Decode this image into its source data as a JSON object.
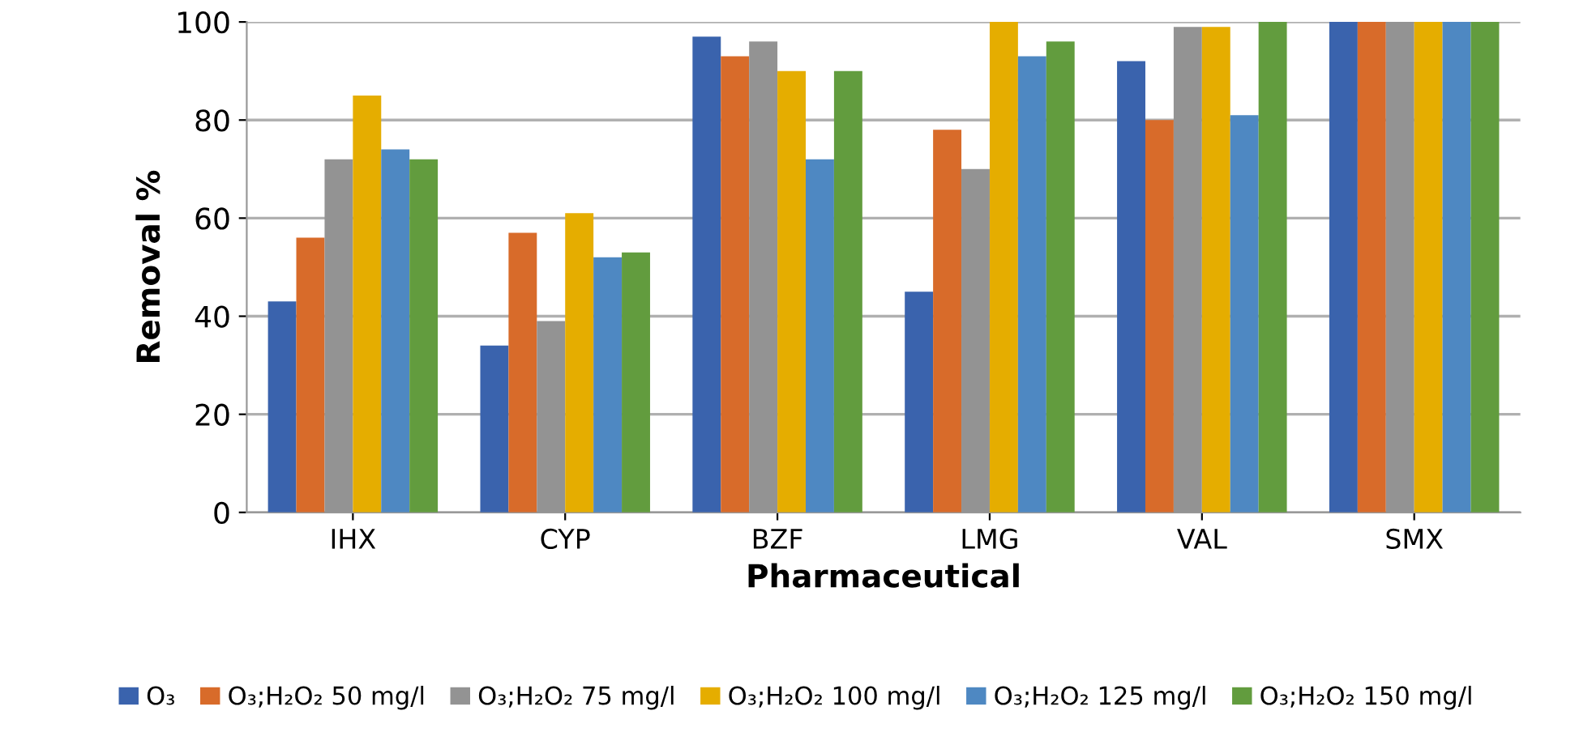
{
  "chart_data": {
    "type": "bar",
    "xlabel": "Pharmaceutical",
    "ylabel": "Removal %",
    "categories": [
      "IHX",
      "CYP",
      "BZF",
      "LMG",
      "VAL",
      "SMX"
    ],
    "series": [
      {
        "name": "O₃",
        "color": "#3a63ad",
        "values": [
          43,
          34,
          97,
          45,
          92,
          100
        ]
      },
      {
        "name": "O₃;H₂O₂ 50 mg/l",
        "color": "#d86b2a",
        "values": [
          56,
          57,
          93,
          78,
          80,
          100
        ]
      },
      {
        "name": "O₃;H₂O₂ 75 mg/l",
        "color": "#939393",
        "values": [
          72,
          39,
          96,
          70,
          99,
          100
        ]
      },
      {
        "name": "O₃;H₂O₂ 100 mg/l",
        "color": "#e5ad00",
        "values": [
          85,
          61,
          90,
          100,
          99,
          100
        ]
      },
      {
        "name": "O₃;H₂O₂ 125 mg/l",
        "color": "#4e88c2",
        "values": [
          74,
          52,
          72,
          93,
          81,
          100
        ]
      },
      {
        "name": "O₃;H₂O₂ 150 mg/l",
        "color": "#629c3e",
        "values": [
          72,
          53,
          90,
          96,
          100,
          100
        ]
      }
    ],
    "ylim": [
      0,
      100
    ],
    "yticks": [
      0,
      20,
      40,
      60,
      80,
      100
    ],
    "grid": "y",
    "legend": "bottom"
  }
}
